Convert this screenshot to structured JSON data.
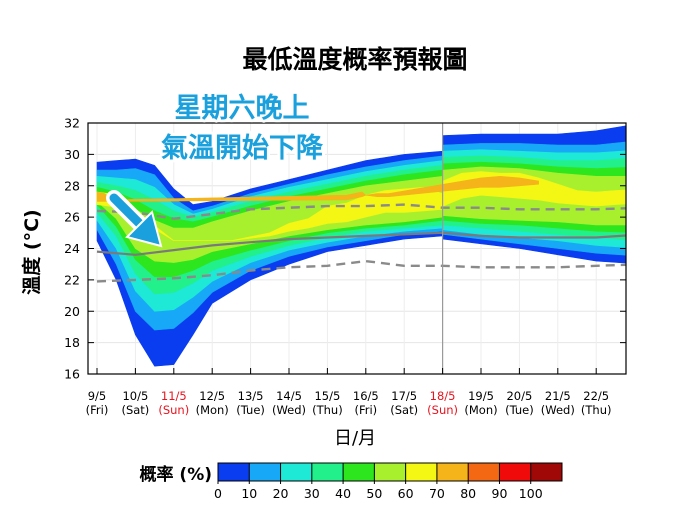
{
  "chart_data": {
    "type": "area",
    "title": "最低溫度概率預報圖",
    "xlabel": "日/月",
    "ylabel": "溫度 (°C)",
    "ylim": [
      16,
      32
    ],
    "yticks": [
      16,
      18,
      20,
      22,
      24,
      26,
      28,
      30,
      32
    ],
    "x_dates": [
      "9/5",
      "10/5",
      "11/5",
      "12/5",
      "13/5",
      "14/5",
      "15/5",
      "16/5",
      "17/5",
      "18/5",
      "19/5",
      "20/5",
      "21/5",
      "22/5"
    ],
    "x_days": [
      "(Fri)",
      "(Sat)",
      "(Sun)",
      "(Mon)",
      "(Tue)",
      "(Wed)",
      "(Thu)",
      "(Fri)",
      "(Sat)",
      "(Sun)",
      "(Mon)",
      "(Tue)",
      "(Wed)",
      "(Thu)"
    ],
    "highlighted_dates": [
      "11/5",
      "18/5"
    ],
    "forecast_start": "18/5",
    "annotation": [
      "星期六晚上",
      "氣溫開始下降"
    ],
    "series": [
      {
        "name": "median",
        "style": "solid",
        "x": [
          0,
          1,
          2,
          3,
          4,
          5,
          6,
          7,
          8,
          9,
          10,
          11,
          12,
          13,
          14.2
        ],
        "values": [
          23.8,
          23.6,
          23.9,
          24.2,
          24.4,
          24.6,
          24.7,
          24.8,
          24.9,
          25.0,
          24.8,
          24.7,
          24.7,
          24.7,
          24.9
        ]
      },
      {
        "name": "upper_dashed",
        "style": "dashed",
        "x": [
          0,
          1,
          2,
          3,
          4,
          5,
          6,
          7,
          8,
          9,
          10,
          11,
          12,
          13,
          14.2
        ],
        "values": [
          26.4,
          26.3,
          25.9,
          26.2,
          26.5,
          26.6,
          26.7,
          26.7,
          26.8,
          26.6,
          26.6,
          26.5,
          26.5,
          26.5,
          26.6
        ]
      },
      {
        "name": "lower_dashed",
        "style": "dashed",
        "x": [
          0,
          1,
          2,
          3,
          4,
          5,
          6,
          7,
          8,
          9,
          10,
          11,
          12,
          13,
          14.2
        ],
        "values": [
          21.9,
          22.0,
          22.1,
          22.3,
          22.6,
          22.8,
          22.9,
          23.2,
          22.9,
          22.9,
          22.8,
          22.8,
          22.8,
          22.9,
          23.0
        ]
      }
    ],
    "probability_bands": [
      {
        "level": 0,
        "x": [
          0,
          0.5,
          1,
          1.5,
          2,
          2.5,
          3,
          4,
          5,
          6,
          7,
          8,
          9,
          9.01,
          10,
          11,
          12,
          13,
          14.2
        ],
        "upper": [
          29.5,
          29.6,
          29.7,
          29.3,
          27.8,
          26.8,
          27.0,
          27.8,
          28.4,
          29.0,
          29.6,
          30.0,
          30.2,
          31.2,
          31.3,
          31.3,
          31.3,
          31.5,
          32.0
        ],
        "lower": [
          24.5,
          22.0,
          18.5,
          16.5,
          16.6,
          18.5,
          20.5,
          22.0,
          23.0,
          23.8,
          24.2,
          24.6,
          24.8,
          24.6,
          24.3,
          24.0,
          23.6,
          23.2,
          23.0
        ]
      },
      {
        "level": 1,
        "x": [
          0,
          0.5,
          1,
          1.5,
          2,
          2.5,
          3,
          4,
          5,
          6,
          7,
          8,
          9,
          9.01,
          10,
          11,
          12,
          13,
          14.2
        ],
        "upper": [
          29.0,
          29.0,
          29.1,
          28.7,
          27.2,
          26.4,
          26.7,
          27.5,
          28.1,
          28.7,
          29.2,
          29.6,
          29.9,
          30.6,
          30.7,
          30.7,
          30.6,
          30.6,
          30.9
        ],
        "lower": [
          25.2,
          23.0,
          20.0,
          18.8,
          18.9,
          19.9,
          21.2,
          22.6,
          23.5,
          24.1,
          24.5,
          24.9,
          25.1,
          24.9,
          24.6,
          24.3,
          24.0,
          23.7,
          23.5
        ]
      },
      {
        "level": 2,
        "x": [
          0,
          0.5,
          1,
          1.5,
          2,
          2.5,
          3,
          4,
          5,
          6,
          7,
          8,
          9,
          9.01,
          10,
          11,
          12,
          13,
          14.2
        ],
        "upper": [
          28.6,
          28.5,
          28.4,
          27.9,
          26.8,
          26.2,
          26.5,
          27.3,
          27.9,
          28.4,
          28.9,
          29.3,
          29.6,
          30.2,
          30.3,
          30.2,
          30.1,
          30.1,
          30.3
        ],
        "lower": [
          25.8,
          24.0,
          21.3,
          20.0,
          20.1,
          20.9,
          21.9,
          23.1,
          23.9,
          24.4,
          24.8,
          25.1,
          25.3,
          25.2,
          24.9,
          24.7,
          24.5,
          24.2,
          24.0
        ]
      },
      {
        "level": 3,
        "x": [
          0,
          0.5,
          1,
          1.5,
          2,
          2.5,
          3,
          4,
          5,
          6,
          7,
          8,
          9,
          9.01,
          10,
          11,
          12,
          13,
          14.2
        ],
        "upper": [
          28.2,
          28.0,
          27.7,
          27.1,
          26.4,
          26.0,
          26.3,
          27.0,
          27.6,
          28.1,
          28.6,
          29.0,
          29.3,
          29.8,
          29.9,
          29.8,
          29.6,
          29.6,
          29.8
        ],
        "lower": [
          26.3,
          24.8,
          22.4,
          21.1,
          21.2,
          21.8,
          22.6,
          23.5,
          24.2,
          24.7,
          25.1,
          25.3,
          25.5,
          25.5,
          25.3,
          25.1,
          24.9,
          24.7,
          24.5
        ]
      },
      {
        "level": 4,
        "x": [
          0,
          0.5,
          1,
          1.5,
          2,
          2.5,
          3,
          4,
          5,
          6,
          7,
          8,
          9,
          9.01,
          10,
          11,
          12,
          13,
          14.2
        ],
        "upper": [
          27.9,
          27.6,
          27.1,
          26.4,
          25.9,
          25.7,
          26.0,
          26.7,
          27.3,
          27.8,
          28.3,
          28.7,
          29.0,
          29.4,
          29.5,
          29.4,
          29.2,
          29.1,
          29.2
        ],
        "lower": [
          26.8,
          25.4,
          23.3,
          22.2,
          22.2,
          22.6,
          23.2,
          23.9,
          24.5,
          25.0,
          25.3,
          25.5,
          25.8,
          25.8,
          25.6,
          25.5,
          25.3,
          25.1,
          25.0
        ]
      },
      {
        "level": 5,
        "x": [
          0,
          0.5,
          1,
          1.5,
          2,
          2.5,
          3,
          4,
          5,
          6,
          7,
          8,
          9,
          9.01,
          10,
          11,
          12,
          13,
          14.2
        ],
        "upper": [
          27.6,
          27.2,
          26.5,
          25.8,
          25.3,
          25.3,
          25.7,
          26.4,
          27.0,
          27.5,
          28.0,
          28.3,
          28.6,
          29.0,
          29.2,
          29.1,
          28.8,
          28.6,
          28.6
        ],
        "lower": [
          27.0,
          25.9,
          24.0,
          23.2,
          23.1,
          23.3,
          23.8,
          24.3,
          24.8,
          25.2,
          25.5,
          25.7,
          26.0,
          26.1,
          25.9,
          25.8,
          25.7,
          25.5,
          25.5
        ]
      },
      {
        "level": 6,
        "x": [
          0,
          0.3,
          0.6,
          2,
          3.5,
          4.5,
          5,
          5.5,
          6,
          6.5,
          7,
          7.5,
          8,
          8.5,
          9,
          9.01,
          9.5,
          10,
          10.5,
          11,
          11.5,
          12,
          12.5,
          13,
          13.5,
          14.2
        ],
        "upper": [
          27.6,
          27.5,
          27.2,
          24.5,
          24.5,
          25.0,
          25.6,
          25.9,
          26.7,
          26.9,
          27.4,
          27.7,
          27.8,
          27.9,
          27.5,
          28.3,
          28.8,
          28.9,
          28.8,
          28.8,
          28.5,
          28.1,
          27.7,
          27.6,
          27.7,
          27.8
        ],
        "lower": [
          26.8,
          26.7,
          26.6,
          24.5,
          24.5,
          24.8,
          25.1,
          25.3,
          25.6,
          25.7,
          26.0,
          26.3,
          26.3,
          26.4,
          26.5,
          26.7,
          27.2,
          27.4,
          27.3,
          27.2,
          27.1,
          26.9,
          26.8,
          26.7,
          26.8,
          26.9
        ]
      },
      {
        "level": 7,
        "x": [
          0,
          0.2,
          0.4,
          6.5,
          6.7,
          6.9,
          7.0,
          7.3,
          7.6,
          10.0,
          10.5,
          11.0,
          11.5
        ],
        "upper": [
          27.6,
          27.5,
          27.1,
          27.4,
          27.5,
          27.6,
          27.4,
          27.5,
          27.5,
          28.5,
          28.6,
          28.5,
          28.3
        ],
        "lower": [
          27.0,
          27.0,
          27.0,
          27.1,
          27.2,
          27.3,
          27.4,
          27.3,
          27.3,
          27.9,
          27.9,
          28.0,
          28.1
        ]
      }
    ],
    "colorbar": {
      "label": "概率 (%)",
      "ticks": [
        0,
        10,
        20,
        30,
        40,
        50,
        60,
        70,
        80,
        90,
        100
      ],
      "colors": [
        "#0a3cf0",
        "#18a8f8",
        "#1ee8d6",
        "#22f08a",
        "#2ee61e",
        "#a8f02e",
        "#f4f614",
        "#f4b41a",
        "#f46814",
        "#f00a0a",
        "#a00808"
      ]
    }
  }
}
